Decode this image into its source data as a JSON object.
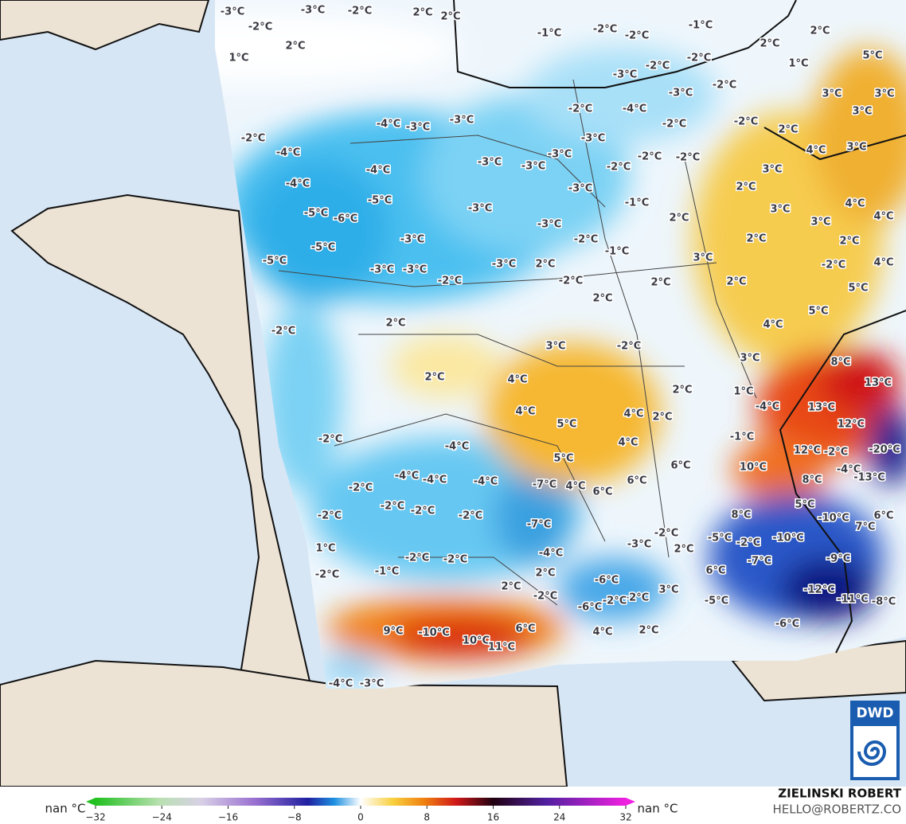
{
  "map": {
    "labels": [
      "-3°C",
      "-2°C",
      "-3°C",
      "-2°C",
      "2°C",
      "2°C",
      "2°C",
      "1°C",
      "-1°C",
      "-2°C",
      "-2°C",
      "-1°C",
      "2°C",
      "2°C",
      "5°C",
      "-2°C",
      "-2°C",
      "1°C",
      "-3°C",
      "-2°C",
      "3°C",
      "3°C",
      "-3°C",
      "-2°C",
      "-4°C",
      "3°C",
      "-4°C",
      "-3°C",
      "-3°C",
      "-2°C",
      "-2°C",
      "2°C",
      "-3°C",
      "-2°C",
      "4°C",
      "3°C",
      "-4°C",
      "-3°C",
      "-2°C",
      "-2°C",
      "-4°C",
      "-3°C",
      "-3°C",
      "-2°C",
      "3°C",
      "-4°C",
      "-3°C",
      "2°C",
      "-5°C",
      "-1°C",
      "-3°C",
      "4°C",
      "-5°C",
      "-6°C",
      "2°C",
      "3°C",
      "3°C",
      "4°C",
      "-3°C",
      "-3°C",
      "-2°C",
      "2°C",
      "2°C",
      "-5°C",
      "-1°C",
      "3°C",
      "-5°C",
      "-3°C",
      "-3°C",
      "-3°C",
      "2°C",
      "-2°C",
      "4°C",
      "-2°C",
      "-2°C",
      "2°C",
      "2°C",
      "5°C",
      "2°C",
      "5°C",
      "2°C",
      "-2°C",
      "4°C",
      "3°C",
      "-2°C",
      "3°C",
      "8°C",
      "2°C",
      "4°C",
      "13°C",
      "2°C",
      "1°C",
      "-4°C",
      "4°C",
      "13°C",
      "4°C",
      "2°C",
      "5°C",
      "12°C",
      "-1°C",
      "-2°C",
      "4°C",
      "12°C",
      "-4°C",
      "-2°C",
      "-20°C",
      "5°C",
      "6°C",
      "10°C",
      "-4°C",
      "-4°C",
      "-4°C",
      "-4°C",
      "-7°C",
      "6°C",
      "8°C",
      "-13°C",
      "-2°C",
      "4°C",
      "6°C",
      "-2°C",
      "-2°C",
      "-2°C",
      "-2°C",
      "8°C",
      "5°C",
      "-10°C",
      "6°C",
      "-7°C",
      "7°C",
      "-2°C",
      "-5°C",
      "-10°C",
      "-3°C",
      "2°C",
      "-2°C",
      "1°C",
      "-4°C",
      "-7°C",
      "-2°C",
      "-2°C",
      "-9°C",
      "-1°C",
      "2°C",
      "6°C",
      "-2°C",
      "-6°C",
      "2°C",
      "-12°C",
      "3°C",
      "-2°C",
      "-2°C",
      "-5°C",
      "-11°C",
      "-8°C",
      "-2°C",
      "-6°C",
      "9°C",
      "-10°C",
      "6°C",
      "4°C",
      "2°C",
      "-6°C",
      "10°C",
      "11°C",
      "-4°C",
      "-3°C"
    ],
    "colorbar": {
      "range": [
        -32,
        32
      ],
      "ticks": [
        {
          "value": -32,
          "label": "−32"
        },
        {
          "value": -24,
          "label": "−24"
        },
        {
          "value": -16,
          "label": "−16"
        },
        {
          "value": -8,
          "label": "−8"
        },
        0,
        8,
        16,
        24,
        32
      ],
      "left_label": "nan °C",
      "right_label": "nan °C"
    },
    "credits": {
      "author": "ZIELINSKI ROBERT",
      "contact": "HELLO@ROBERTZ.CO",
      "logo": "DWD"
    }
  }
}
